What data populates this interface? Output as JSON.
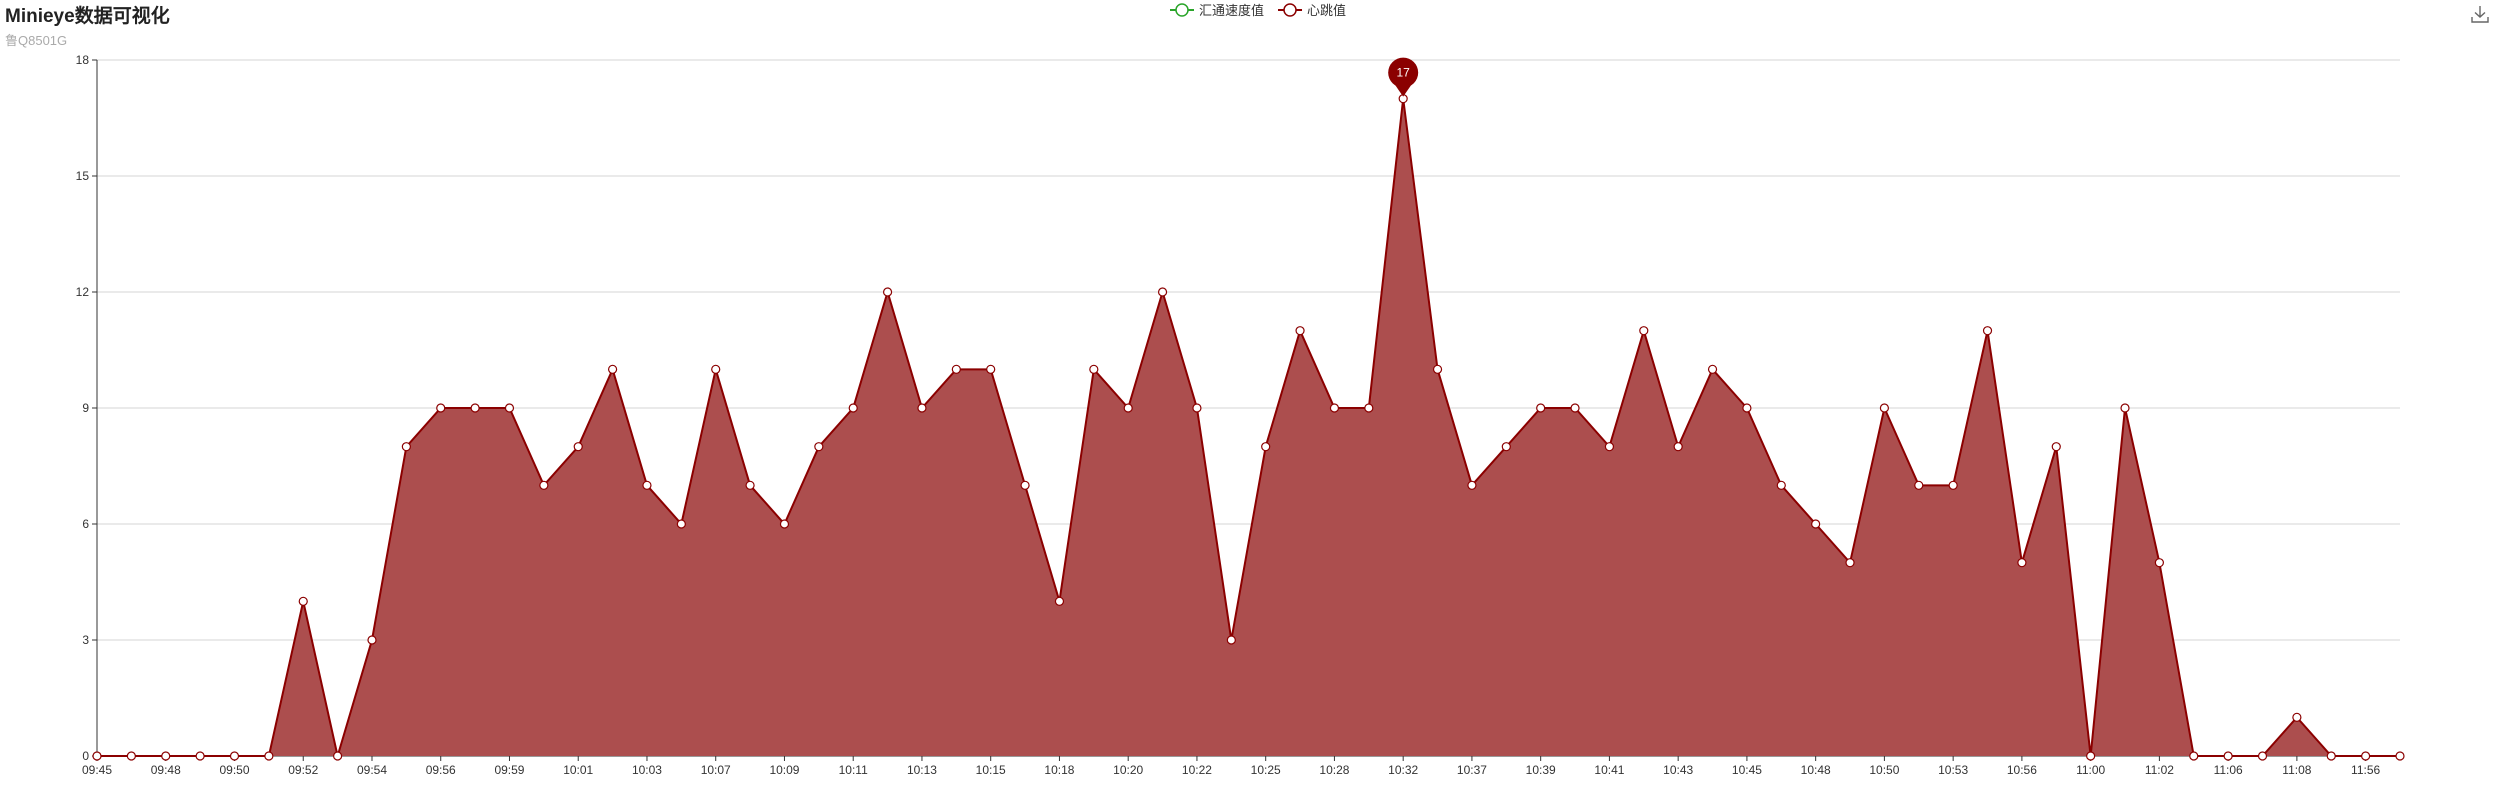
{
  "header": {
    "title": "Minieye数据可视化",
    "subtitle": "鲁Q8501G"
  },
  "toolbox": {
    "save_icon": "download-icon"
  },
  "chart_data": {
    "type": "area",
    "legend": [
      "汇通速度值",
      "心跳值"
    ],
    "legend_placement": "top-center",
    "series": [
      {
        "name": "汇通速度值",
        "color": "#2aa52a",
        "values": []
      },
      {
        "name": "心跳值",
        "color": "#8b0000",
        "fill": "#ac4e4e",
        "values": [
          0,
          0,
          0,
          0,
          0,
          0,
          4,
          0,
          3,
          8,
          9,
          9,
          9,
          7,
          8,
          10,
          7,
          6,
          10,
          7,
          6,
          8,
          9,
          12,
          9,
          10,
          10,
          7,
          4,
          10,
          9,
          12,
          9,
          3,
          8,
          11,
          9,
          9,
          17,
          10,
          7,
          8,
          9,
          9,
          8,
          11,
          8,
          10,
          9,
          7,
          6,
          5,
          9,
          7,
          7,
          11,
          5,
          8,
          0,
          9,
          5,
          0,
          0,
          0,
          1,
          0,
          0,
          0
        ]
      }
    ],
    "x_tick_labels": [
      "09:45",
      "09:48",
      "09:50",
      "09:52",
      "09:54",
      "09:56",
      "09:59",
      "10:01",
      "10:03",
      "10:07",
      "10:09",
      "10:11",
      "10:13",
      "10:15",
      "10:18",
      "10:20",
      "10:22",
      "10:25",
      "10:28",
      "10:32",
      "10:37",
      "10:39",
      "10:41",
      "10:43",
      "10:45",
      "10:48",
      "10:50",
      "10:53",
      "10:56",
      "11:00",
      "11:02",
      "11:06",
      "11:08",
      "11:56"
    ],
    "x_tick_interval": 2,
    "ylim": [
      0,
      18
    ],
    "y_ticks": [
      0,
      3,
      6,
      9,
      12,
      15,
      18
    ],
    "grid": true,
    "max_marker": {
      "label": "17",
      "value": 17,
      "color": "#8b0000"
    }
  }
}
